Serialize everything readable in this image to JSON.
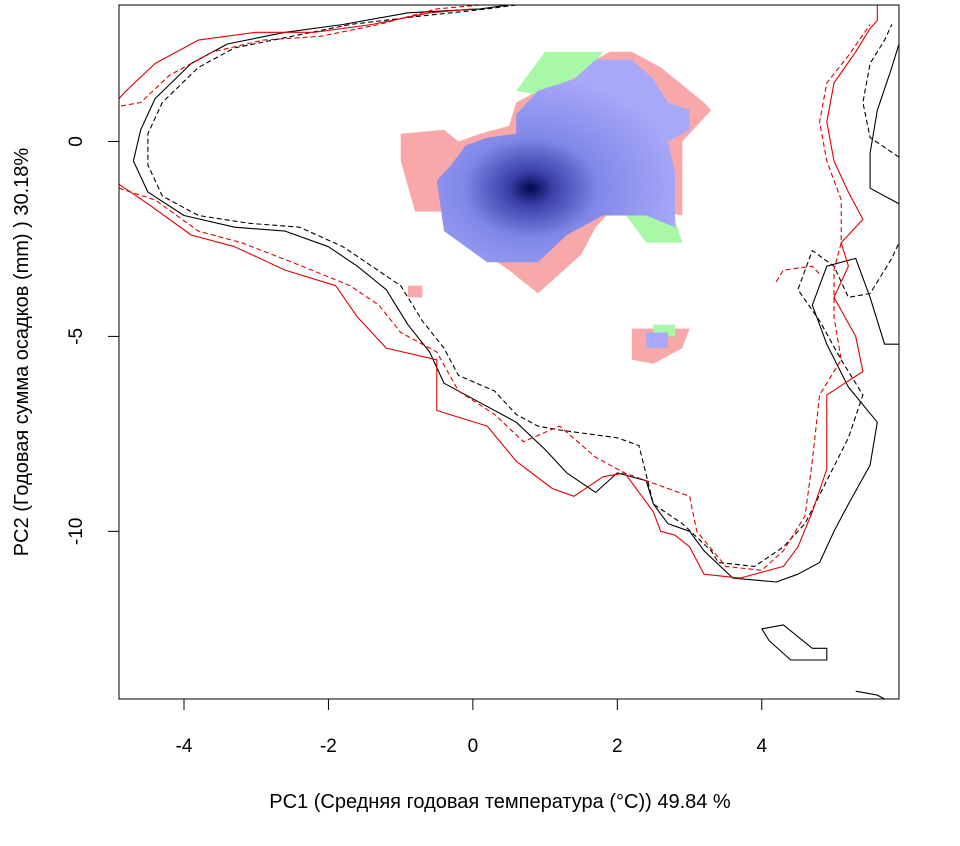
{
  "chart_data": {
    "type": "heatmap",
    "xlabel": "PC1 (Средняя годовая температура (°C)) 49.84 %",
    "ylabel": "PC2 (Годовая сумма осадков  (mm) ) 30.18%",
    "xlim": [
      -4.9,
      5.9
    ],
    "ylim": [
      -14.3,
      3.5
    ],
    "x_ticks": [
      -4,
      -2,
      0,
      2,
      4
    ],
    "y_ticks": [
      0,
      -5,
      -10
    ],
    "colors": {
      "pink_region": "#f8a8a8",
      "green_region": "#a8f8a8",
      "blue_region": "#a8a8f8",
      "density_peak": "#000a50",
      "contour_black": "#000000",
      "contour_red": "#e00000"
    },
    "density_peak": {
      "x": 0.8,
      "y": -1.2
    },
    "regions": {
      "green": [
        [
          [
            0.6,
            1.3
          ],
          [
            1.0,
            2.3
          ],
          [
            1.8,
            2.3
          ],
          [
            1.6,
            1.8
          ],
          [
            0.9,
            1.2
          ]
        ],
        [
          [
            2.0,
            -1.6
          ],
          [
            2.4,
            -2.6
          ],
          [
            2.9,
            -2.6
          ],
          [
            2.8,
            -2.0
          ],
          [
            2.3,
            -1.7
          ]
        ],
        [
          [
            2.5,
            -4.7
          ],
          [
            2.8,
            -4.7
          ],
          [
            2.8,
            -5.0
          ],
          [
            2.5,
            -5.0
          ]
        ]
      ],
      "pink": [
        [
          [
            -1.0,
            0.2
          ],
          [
            -1.0,
            -0.5
          ],
          [
            -0.8,
            -1.8
          ],
          [
            -0.4,
            -1.8
          ],
          [
            -0.4,
            -1.6
          ],
          [
            0.1,
            -2.8
          ],
          [
            0.5,
            -3.3
          ],
          [
            0.9,
            -3.9
          ],
          [
            1.2,
            -3.4
          ],
          [
            1.5,
            -2.9
          ],
          [
            1.7,
            -2.2
          ],
          [
            2.0,
            -1.6
          ],
          [
            2.9,
            -1.9
          ],
          [
            2.9,
            0
          ],
          [
            3.3,
            0.8
          ],
          [
            3.2,
            1.0
          ],
          [
            2.6,
            1.9
          ],
          [
            2.2,
            2.3
          ],
          [
            1.9,
            2.3
          ],
          [
            1.2,
            1.6
          ],
          [
            0.6,
            1.0
          ],
          [
            0.5,
            0.4
          ],
          [
            0.1,
            0.2
          ],
          [
            -0.2,
            0.0
          ],
          [
            -0.4,
            0.3
          ]
        ],
        [
          [
            -0.9,
            -3.7
          ],
          [
            -0.7,
            -3.7
          ],
          [
            -0.7,
            -4.0
          ],
          [
            -0.9,
            -4.0
          ]
        ],
        [
          [
            2.2,
            -4.8
          ],
          [
            3.0,
            -4.8
          ],
          [
            2.9,
            -5.3
          ],
          [
            2.5,
            -5.7
          ],
          [
            2.2,
            -5.6
          ]
        ]
      ],
      "blue": [
        [
          [
            -0.5,
            -1.0
          ],
          [
            -0.4,
            -2.3
          ],
          [
            0.2,
            -3.1
          ],
          [
            0.9,
            -3.1
          ],
          [
            1.3,
            -2.4
          ],
          [
            1.8,
            -1.9
          ],
          [
            2.4,
            -1.9
          ],
          [
            2.8,
            -2.2
          ],
          [
            2.8,
            -0.8
          ],
          [
            2.7,
            0.0
          ],
          [
            3.0,
            0.3
          ],
          [
            3.0,
            0.8
          ],
          [
            2.7,
            1.0
          ],
          [
            2.5,
            1.6
          ],
          [
            2.2,
            2.1
          ],
          [
            1.7,
            2.1
          ],
          [
            1.4,
            1.6
          ],
          [
            0.9,
            1.3
          ],
          [
            0.6,
            0.7
          ],
          [
            0.6,
            0.2
          ],
          [
            0.2,
            0.1
          ],
          [
            -0.1,
            -0.1
          ],
          [
            -0.3,
            -0.6
          ]
        ],
        [
          [
            2.4,
            -4.9
          ],
          [
            2.7,
            -4.9
          ],
          [
            2.7,
            -5.3
          ],
          [
            2.4,
            -5.3
          ]
        ]
      ]
    },
    "contours": {
      "black_solid": [
        [
          [
            0.5,
            3.5
          ],
          [
            0.1,
            3.4
          ],
          [
            -0.9,
            3.3
          ],
          [
            -1.8,
            3.0
          ],
          [
            -2.6,
            2.8
          ],
          [
            -3.4,
            2.5
          ],
          [
            -3.9,
            2.0
          ],
          [
            -4.4,
            1.1
          ],
          [
            -4.6,
            0.3
          ],
          [
            -4.7,
            -0.5
          ],
          [
            -4.5,
            -1.3
          ],
          [
            -4.0,
            -1.9
          ],
          [
            -3.3,
            -2.2
          ],
          [
            -2.6,
            -2.3
          ],
          [
            -2.0,
            -2.7
          ],
          [
            -1.6,
            -3.2
          ],
          [
            -1.2,
            -3.8
          ],
          [
            -0.9,
            -4.7
          ],
          [
            -0.6,
            -5.4
          ],
          [
            -0.4,
            -6.2
          ],
          [
            0.0,
            -6.6
          ],
          [
            0.6,
            -7.2
          ],
          [
            1.0,
            -7.9
          ],
          [
            1.3,
            -8.5
          ],
          [
            1.7,
            -9.0
          ],
          [
            2.0,
            -8.5
          ],
          [
            2.4,
            -8.7
          ],
          [
            2.5,
            -9.3
          ],
          [
            2.7,
            -9.8
          ],
          [
            3.0,
            -10.0
          ],
          [
            3.2,
            -10.5
          ],
          [
            3.6,
            -11.2
          ],
          [
            4.2,
            -11.3
          ],
          [
            4.5,
            -11.1
          ],
          [
            4.8,
            -10.8
          ],
          [
            5.0,
            -10.0
          ],
          [
            5.2,
            -9.3
          ],
          [
            5.5,
            -8.3
          ],
          [
            5.6,
            -7.2
          ],
          [
            5.2,
            -6.3
          ],
          [
            4.9,
            -5.2
          ],
          [
            4.7,
            -4.2
          ],
          [
            4.9,
            -3.2
          ],
          [
            5.3,
            -3.0
          ],
          [
            5.5,
            -4.0
          ],
          [
            5.7,
            -5.2
          ],
          [
            5.9,
            -5.2
          ]
        ],
        [
          [
            5.9,
            -1.6
          ],
          [
            5.5,
            -1.2
          ],
          [
            5.5,
            -0.3
          ],
          [
            5.6,
            0.8
          ],
          [
            5.8,
            1.9
          ],
          [
            5.9,
            2.5
          ]
        ],
        [
          [
            4.0,
            -12.5
          ],
          [
            4.3,
            -12.4
          ],
          [
            4.7,
            -13.0
          ],
          [
            4.9,
            -13.0
          ],
          [
            4.9,
            -13.3
          ],
          [
            4.4,
            -13.3
          ],
          [
            4.1,
            -12.8
          ]
        ],
        [
          [
            5.3,
            -14.1
          ],
          [
            5.6,
            -14.2
          ],
          [
            5.7,
            -14.3
          ]
        ]
      ],
      "black_dashed": [
        [
          [
            0.6,
            3.5
          ],
          [
            0.2,
            3.4
          ],
          [
            -0.8,
            3.2
          ],
          [
            -1.7,
            3.0
          ],
          [
            -2.5,
            2.7
          ],
          [
            -3.3,
            2.4
          ],
          [
            -3.8,
            1.9
          ],
          [
            -4.3,
            1.0
          ],
          [
            -4.5,
            0.2
          ],
          [
            -4.5,
            -0.6
          ],
          [
            -4.3,
            -1.4
          ],
          [
            -3.8,
            -1.9
          ],
          [
            -3.1,
            -2.1
          ],
          [
            -2.4,
            -2.2
          ],
          [
            -1.8,
            -2.7
          ],
          [
            -1.4,
            -3.2
          ],
          [
            -1.0,
            -3.7
          ],
          [
            -0.7,
            -4.6
          ],
          [
            -0.4,
            -5.3
          ],
          [
            -0.2,
            -6.0
          ],
          [
            0.3,
            -6.4
          ],
          [
            0.6,
            -7.0
          ],
          [
            0.9,
            -7.3
          ],
          [
            1.2,
            -7.4
          ],
          [
            2.0,
            -7.6
          ],
          [
            2.3,
            -7.8
          ],
          [
            2.5,
            -9.3
          ],
          [
            2.9,
            -9.8
          ],
          [
            3.3,
            -10.5
          ],
          [
            3.4,
            -10.8
          ],
          [
            3.9,
            -10.9
          ],
          [
            4.3,
            -10.4
          ],
          [
            4.6,
            -9.8
          ],
          [
            4.9,
            -8.7
          ],
          [
            5.2,
            -7.6
          ],
          [
            5.4,
            -6.5
          ],
          [
            5.1,
            -5.6
          ],
          [
            4.8,
            -4.6
          ],
          [
            4.5,
            -3.8
          ],
          [
            4.7,
            -2.8
          ],
          [
            5.0,
            -3.2
          ],
          [
            5.2,
            -4.0
          ],
          [
            5.5,
            -3.9
          ],
          [
            5.8,
            -3.0
          ],
          [
            5.9,
            -2.6
          ]
        ],
        [
          [
            5.9,
            -0.4
          ],
          [
            5.5,
            0.1
          ],
          [
            5.4,
            1.0
          ],
          [
            5.5,
            2.0
          ],
          [
            5.7,
            2.6
          ],
          [
            5.8,
            3.0
          ]
        ]
      ],
      "red_solid": [
        [
          [
            0.0,
            3.4
          ],
          [
            -0.6,
            3.3
          ],
          [
            -1.4,
            3.0
          ],
          [
            -2.2,
            2.8
          ],
          [
            -3.0,
            2.8
          ],
          [
            -3.8,
            2.6
          ],
          [
            -4.4,
            2.0
          ],
          [
            -4.8,
            1.3
          ],
          [
            -4.9,
            1.1
          ]
        ],
        [
          [
            -4.9,
            -1.1
          ],
          [
            -4.5,
            -1.6
          ],
          [
            -3.9,
            -2.4
          ],
          [
            -3.3,
            -2.7
          ],
          [
            -2.6,
            -3.3
          ],
          [
            -1.9,
            -3.7
          ],
          [
            -1.6,
            -4.5
          ],
          [
            -1.2,
            -5.3
          ],
          [
            -0.5,
            -5.6
          ],
          [
            -0.5,
            -6.9
          ],
          [
            0.2,
            -7.3
          ],
          [
            0.6,
            -8.2
          ],
          [
            1.1,
            -8.9
          ],
          [
            1.4,
            -9.1
          ],
          [
            1.8,
            -8.6
          ],
          [
            2.1,
            -8.5
          ],
          [
            2.5,
            -9.5
          ],
          [
            2.6,
            -10.0
          ],
          [
            2.8,
            -10.1
          ],
          [
            3.0,
            -10.4
          ],
          [
            3.2,
            -11.1
          ],
          [
            3.7,
            -11.2
          ],
          [
            4.3,
            -10.9
          ],
          [
            4.5,
            -10.4
          ],
          [
            4.7,
            -9.5
          ],
          [
            4.9,
            -8.4
          ],
          [
            4.9,
            -6.5
          ],
          [
            5.4,
            -5.9
          ],
          [
            5.3,
            -5.0
          ],
          [
            5.0,
            -4.0
          ],
          [
            5.2,
            -3.2
          ],
          [
            5.1,
            -2.6
          ],
          [
            5.4,
            -2.0
          ],
          [
            5.2,
            -1.3
          ],
          [
            5.0,
            -0.5
          ],
          [
            4.9,
            0.5
          ],
          [
            5.0,
            1.5
          ],
          [
            5.3,
            2.3
          ],
          [
            5.5,
            2.9
          ],
          [
            5.6,
            3.1
          ],
          [
            5.6,
            3.5
          ]
        ]
      ],
      "red_dashed": [
        [
          [
            0.1,
            3.5
          ],
          [
            -0.5,
            3.4
          ],
          [
            -1.3,
            3.0
          ],
          [
            -2.1,
            2.7
          ],
          [
            -2.9,
            2.6
          ],
          [
            -3.6,
            2.3
          ],
          [
            -4.2,
            1.7
          ],
          [
            -4.6,
            1.0
          ],
          [
            -4.9,
            0.9
          ]
        ],
        [
          [
            -4.9,
            -1.2
          ],
          [
            -4.4,
            -1.5
          ],
          [
            -3.8,
            -2.3
          ],
          [
            -3.2,
            -2.6
          ],
          [
            -2.5,
            -3.1
          ],
          [
            -1.7,
            -3.7
          ],
          [
            -1.3,
            -4.2
          ],
          [
            -1.0,
            -4.9
          ],
          [
            -0.5,
            -5.4
          ],
          [
            -0.2,
            -6.4
          ],
          [
            0.3,
            -7.0
          ],
          [
            0.7,
            -7.7
          ],
          [
            1.2,
            -7.3
          ],
          [
            1.7,
            -8.1
          ],
          [
            2.1,
            -8.5
          ],
          [
            2.7,
            -8.9
          ],
          [
            3.0,
            -9.1
          ],
          [
            3.1,
            -10.0
          ],
          [
            3.5,
            -10.9
          ],
          [
            4.0,
            -11.0
          ],
          [
            4.3,
            -10.5
          ],
          [
            4.6,
            -9.6
          ],
          [
            4.7,
            -8.2
          ],
          [
            4.8,
            -6.5
          ],
          [
            5.1,
            -5.6
          ],
          [
            5.0,
            -4.5
          ],
          [
            5.0,
            -3.3
          ],
          [
            5.1,
            -2.6
          ],
          [
            5.1,
            -1.5
          ],
          [
            4.9,
            -0.5
          ],
          [
            4.8,
            0.5
          ],
          [
            4.9,
            1.5
          ],
          [
            5.2,
            2.2
          ],
          [
            5.5,
            3.0
          ]
        ],
        [
          [
            4.2,
            -3.6
          ],
          [
            4.3,
            -3.3
          ],
          [
            4.7,
            -3.2
          ],
          [
            4.8,
            -3.4
          ]
        ]
      ]
    }
  }
}
